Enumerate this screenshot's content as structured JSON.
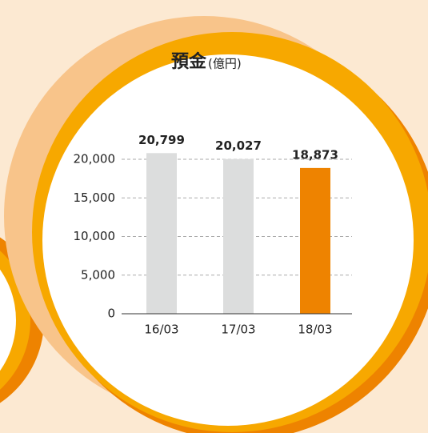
{
  "chart_data": {
    "type": "bar",
    "title": "預金",
    "subtitle": "(億円)",
    "categories": [
      "16/03",
      "17/03",
      "18/03"
    ],
    "values": [
      20799,
      20027,
      18873
    ],
    "value_labels": [
      "20,799",
      "20,027",
      "18,873"
    ],
    "colors": [
      "#dcdddd",
      "#dcdddd",
      "#ee8300"
    ],
    "ylim": [
      0,
      20000
    ],
    "yticks": [
      0,
      {
        "value": 5000,
        "label": "5,000"
      },
      {
        "value": 10000,
        "label": "10,000"
      },
      {
        "value": 15000,
        "label": "15,000"
      },
      {
        "value": 20000,
        "label": "20,000"
      }
    ],
    "grid": true
  }
}
